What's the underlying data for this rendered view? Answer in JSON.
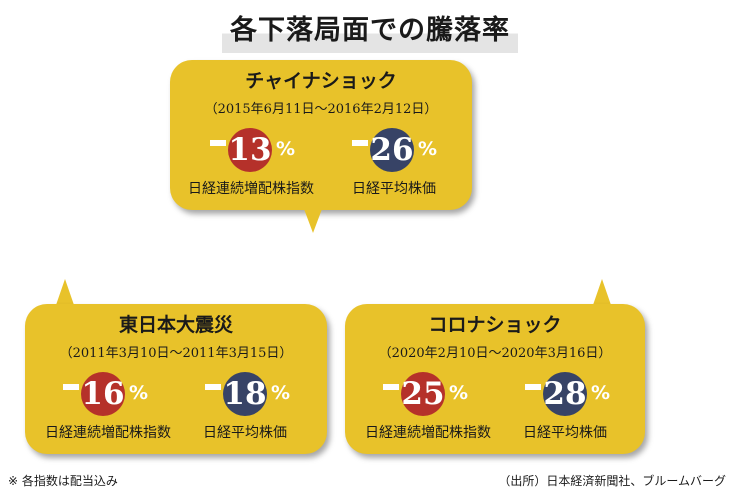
{
  "title": "各下落局面での騰落率",
  "colors": {
    "bubble": "#e8c22a",
    "nikkei_dividend": "#b5312a",
    "nikkei_average": "#374366"
  },
  "events": [
    {
      "name": "チャイナショック",
      "period": "（2015年6月11日～2016年2月12日）",
      "stats": [
        {
          "value": "13",
          "sign": "－",
          "unit": "%",
          "label": "日経連続増配株指数"
        },
        {
          "value": "26",
          "sign": "－",
          "unit": "%",
          "label": "日経平均株価"
        }
      ]
    },
    {
      "name": "東日本大震災",
      "period": "（2011年3月10日～2011年3月15日）",
      "stats": [
        {
          "value": "16",
          "sign": "－",
          "unit": "%",
          "label": "日経連続増配株指数"
        },
        {
          "value": "18",
          "sign": "－",
          "unit": "%",
          "label": "日経平均株価"
        }
      ]
    },
    {
      "name": "コロナショック",
      "period": "（2020年2月10日～2020年3月16日）",
      "stats": [
        {
          "value": "25",
          "sign": "－",
          "unit": "%",
          "label": "日経連続増配株指数"
        },
        {
          "value": "28",
          "sign": "－",
          "unit": "%",
          "label": "日経平均株価"
        }
      ]
    }
  ],
  "footnote": "※ 各指数は配当込み",
  "source": "（出所）日本経済新聞社、ブルームバーグ"
}
